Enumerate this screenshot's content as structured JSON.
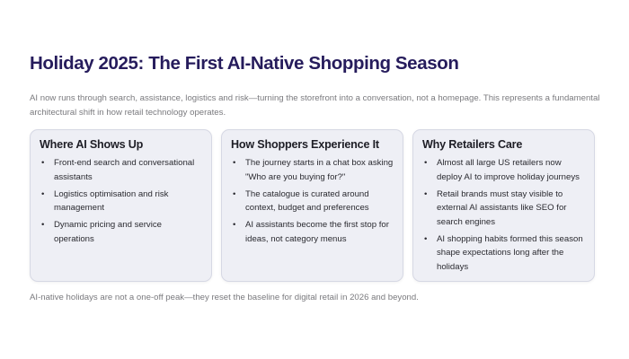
{
  "title": "Holiday 2025: The First AI-Native Shopping Season",
  "intro": "AI now runs through search, assistance, logistics and risk—turning the storefront into a conversation, not a homepage. This represents a fundamental architectural shift in how retail technology operates.",
  "cards": [
    {
      "heading": "Where AI Shows Up",
      "items": [
        "Front-end search and conversational assistants",
        "Logistics optimisation and risk management",
        "Dynamic pricing and service operations"
      ]
    },
    {
      "heading": "How Shoppers Experience It",
      "items": [
        "The journey starts in a chat box asking \"Who are you buying for?\"",
        "The catalogue is curated around context, budget and preferences",
        "AI assistants become the first stop for ideas, not category menus"
      ]
    },
    {
      "heading": "Why Retailers Care",
      "items": [
        "Almost all large US retailers now deploy AI to improve holiday journeys",
        "Retail brands must stay visible to external AI assistants like SEO for search engines",
        "AI shopping habits formed this season shape expectations long after the holidays"
      ]
    }
  ],
  "footer": "AI-native holidays are not a one-off peak—they reset the baseline for digital retail in 2026 and beyond."
}
